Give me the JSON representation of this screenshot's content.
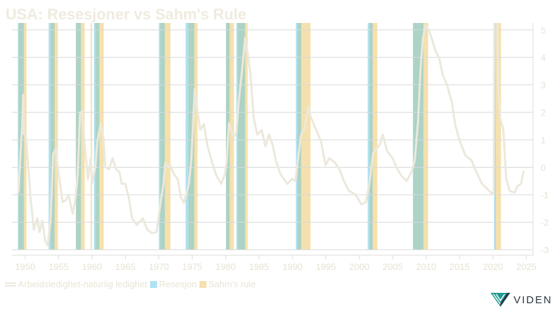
{
  "chart_data": {
    "type": "line",
    "title": "USA: Resesjoner vs Sahm's Rule",
    "xlabel": "",
    "ylabel": "",
    "xlim": [
      1948.0,
      2026.0
    ],
    "ylim": [
      -3,
      5.25
    ],
    "x_ticks": [
      1950,
      1955,
      1960,
      1965,
      1970,
      1975,
      1980,
      1985,
      1990,
      1995,
      2000,
      2005,
      2010,
      2015,
      2020,
      2025
    ],
    "y_ticks": [
      5,
      4,
      3,
      2,
      1,
      0,
      -1,
      -2,
      -3
    ],
    "y_axis_side": "right",
    "grid": true,
    "legend_position": "bottom-left",
    "legend": [
      "Arbeidsledighet-naturlig ledighet",
      "Resesjon",
      "Sahm's rule"
    ],
    "colors": {
      "line": "#ece8dc",
      "recession": "#b0e2f2",
      "sahm": "#f5e1ae",
      "overlap": "#acd3c5"
    },
    "series": [
      {
        "name": "Arbeidsledighet-naturlig ledighet",
        "points": [
          [
            1949.0,
            -0.93
          ],
          [
            1949.4,
            0.94
          ],
          [
            1949.55,
            1.52
          ],
          [
            1949.7,
            2.64
          ],
          [
            1949.8,
            1.2
          ],
          [
            1950.07,
            1.2
          ],
          [
            1950.4,
            0.25
          ],
          [
            1950.76,
            -1.0
          ],
          [
            1951.3,
            -2.28
          ],
          [
            1951.8,
            -1.85
          ],
          [
            1952.15,
            -2.36
          ],
          [
            1952.57,
            -1.95
          ],
          [
            1953.0,
            -2.7
          ],
          [
            1953.36,
            -2.84
          ],
          [
            1953.8,
            -1.95
          ],
          [
            1954.2,
            0.5
          ],
          [
            1954.6,
            0.68
          ],
          [
            1954.75,
            0.25
          ],
          [
            1955.3,
            -0.76
          ],
          [
            1955.6,
            -1.27
          ],
          [
            1956.1,
            -1.19
          ],
          [
            1956.5,
            -1.0
          ],
          [
            1957.1,
            -1.7
          ],
          [
            1957.5,
            -1.19
          ],
          [
            1957.87,
            -0.25
          ],
          [
            1958.2,
            1.98
          ],
          [
            1958.56,
            2.03
          ],
          [
            1958.9,
            0.84
          ],
          [
            1959.4,
            -0.43
          ],
          [
            1959.8,
            0.33
          ],
          [
            1960.0,
            -0.6
          ],
          [
            1960.5,
            0.0
          ],
          [
            1960.8,
            0.94
          ],
          [
            1961.3,
            1.6
          ],
          [
            1961.7,
            1.1
          ],
          [
            1962.0,
            0.0
          ],
          [
            1962.55,
            -0.08
          ],
          [
            1963.07,
            0.33
          ],
          [
            1963.6,
            -0.08
          ],
          [
            1964.1,
            -0.17
          ],
          [
            1964.45,
            -0.6
          ],
          [
            1964.97,
            -0.6
          ],
          [
            1965.5,
            -1.1
          ],
          [
            1966.0,
            -1.86
          ],
          [
            1966.7,
            -2.1
          ],
          [
            1967.6,
            -1.86
          ],
          [
            1968.3,
            -2.28
          ],
          [
            1969.0,
            -2.4
          ],
          [
            1969.65,
            -2.36
          ],
          [
            1970.17,
            -1.44
          ],
          [
            1970.7,
            -0.6
          ],
          [
            1970.97,
            0.17
          ],
          [
            1971.4,
            0.0
          ],
          [
            1971.7,
            0.08
          ],
          [
            1972.25,
            -0.25
          ],
          [
            1972.8,
            -0.42
          ],
          [
            1973.3,
            -1.1
          ],
          [
            1973.75,
            -1.3
          ],
          [
            1974.15,
            -0.93
          ],
          [
            1974.5,
            -0.6
          ],
          [
            1974.85,
            0.25
          ],
          [
            1975.2,
            1.95
          ],
          [
            1975.37,
            2.84
          ],
          [
            1975.7,
            2.2
          ],
          [
            1976.2,
            1.35
          ],
          [
            1976.75,
            1.57
          ],
          [
            1977.3,
            0.76
          ],
          [
            1977.97,
            0.17
          ],
          [
            1978.67,
            -0.34
          ],
          [
            1979.35,
            -0.6
          ],
          [
            1979.9,
            -0.25
          ],
          [
            1980.15,
            0.17
          ],
          [
            1980.5,
            1.6
          ],
          [
            1980.9,
            1.27
          ],
          [
            1981.25,
            1.1
          ],
          [
            1981.6,
            1.27
          ],
          [
            1981.95,
            2.36
          ],
          [
            1982.5,
            3.63
          ],
          [
            1982.9,
            4.7
          ],
          [
            1983.35,
            4.06
          ],
          [
            1983.7,
            3.38
          ],
          [
            1984.2,
            1.78
          ],
          [
            1984.73,
            1.19
          ],
          [
            1985.4,
            1.35
          ],
          [
            1985.95,
            0.76
          ],
          [
            1986.47,
            1.19
          ],
          [
            1987.0,
            0.84
          ],
          [
            1987.5,
            0.25
          ],
          [
            1988.2,
            -0.25
          ],
          [
            1988.7,
            -0.42
          ],
          [
            1989.24,
            -0.6
          ],
          [
            1989.93,
            -0.42
          ],
          [
            1990.45,
            -0.5
          ],
          [
            1990.8,
            0.25
          ],
          [
            1991.3,
            1.19
          ],
          [
            1991.83,
            1.44
          ],
          [
            1992.4,
            2.2
          ],
          [
            1992.7,
            1.86
          ],
          [
            1993.4,
            1.44
          ],
          [
            1994.27,
            0.94
          ],
          [
            1994.95,
            0.08
          ],
          [
            1995.5,
            0.33
          ],
          [
            1996.35,
            0.17
          ],
          [
            1997.04,
            -0.08
          ],
          [
            1997.7,
            -0.5
          ],
          [
            1998.4,
            -0.85
          ],
          [
            1999.46,
            -1.0
          ],
          [
            2000.3,
            -1.35
          ],
          [
            2001.0,
            -1.27
          ],
          [
            2001.5,
            -0.6
          ],
          [
            2002.06,
            0.5
          ],
          [
            2002.6,
            0.68
          ],
          [
            2003.1,
            0.84
          ],
          [
            2003.5,
            1.19
          ],
          [
            2004.15,
            0.59
          ],
          [
            2005.0,
            0.33
          ],
          [
            2005.7,
            -0.08
          ],
          [
            2006.4,
            -0.34
          ],
          [
            2007.1,
            -0.5
          ],
          [
            2007.8,
            -0.17
          ],
          [
            2008.3,
            0.25
          ],
          [
            2008.8,
            1.7
          ],
          [
            2009.17,
            3.63
          ],
          [
            2009.5,
            4.64
          ],
          [
            2009.86,
            5.15
          ],
          [
            2010.4,
            5.0
          ],
          [
            2010.9,
            4.64
          ],
          [
            2011.4,
            4.23
          ],
          [
            2011.95,
            3.98
          ],
          [
            2012.46,
            3.38
          ],
          [
            2013.16,
            2.97
          ],
          [
            2013.85,
            2.36
          ],
          [
            2014.37,
            1.52
          ],
          [
            2015.06,
            0.94
          ],
          [
            2015.9,
            0.42
          ],
          [
            2016.8,
            0.25
          ],
          [
            2017.5,
            -0.17
          ],
          [
            2018.35,
            -0.6
          ],
          [
            2019.04,
            -0.76
          ],
          [
            2019.74,
            -0.93
          ],
          [
            2020.1,
            -0.97
          ],
          [
            2020.3,
            10.3
          ],
          [
            2020.8,
            2.8
          ],
          [
            2021.1,
            1.78
          ],
          [
            2021.56,
            1.35
          ],
          [
            2021.97,
            -0.42
          ],
          [
            2022.5,
            -0.85
          ],
          [
            2023.2,
            -0.93
          ],
          [
            2023.7,
            -0.68
          ],
          [
            2024.2,
            -0.6
          ],
          [
            2024.6,
            -0.13
          ]
        ]
      }
    ],
    "recessions": [
      [
        1948.9,
        1949.8
      ],
      [
        1953.5,
        1954.4
      ],
      [
        1957.6,
        1958.35
      ],
      [
        1960.3,
        1961.1
      ],
      [
        1970.0,
        1970.9
      ],
      [
        1974.0,
        1975.3
      ],
      [
        1980.05,
        1980.6
      ],
      [
        1981.6,
        1982.9
      ],
      [
        1990.5,
        1991.3
      ],
      [
        2001.25,
        2002.0
      ],
      [
        2008.0,
        2009.6
      ],
      [
        2020.17,
        2020.35
      ]
    ],
    "sahm_rule": [
      [
        1949.0,
        1950.2
      ],
      [
        1953.8,
        1954.9
      ],
      [
        1957.6,
        1958.9
      ],
      [
        1959.8,
        1960.0
      ],
      [
        1960.5,
        1961.75
      ],
      [
        1970.2,
        1971.75
      ],
      [
        1974.4,
        1975.8
      ],
      [
        1980.05,
        1981.25
      ],
      [
        1981.8,
        1983.3
      ],
      [
        1990.75,
        1992.7
      ],
      [
        2001.55,
        2002.7
      ],
      [
        2008.1,
        2010.3
      ],
      [
        2020.3,
        2021.2
      ]
    ]
  },
  "brand": {
    "name": "VIDEN"
  }
}
